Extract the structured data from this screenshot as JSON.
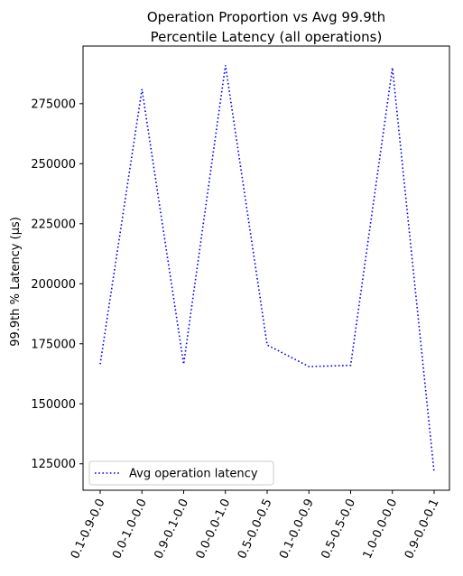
{
  "chart_data": {
    "type": "line",
    "title_line1": "Operation Proportion vs Avg 99.9th",
    "title_line2": "Percentile Latency (all operations)",
    "xlabel": "",
    "ylabel": "99.9th % Latency (µs)",
    "categories": [
      "0.1-0.9-0.0",
      "0.0-1.0-0.0",
      "0.9-0.1-0.0",
      "0.0-0.0-1.0",
      "0.5-0.0-0.5",
      "0.1-0.0-0.9",
      "0.5-0.5-0.0",
      "1.0-0.0-0.0",
      "0.9-0.0-0.1"
    ],
    "series": [
      {
        "name": "Avg operation latency",
        "values": [
          166500,
          281000,
          166500,
          291000,
          174500,
          165500,
          166000,
          290000,
          121500
        ],
        "color": "#0000ff",
        "line_style": "dotted"
      }
    ],
    "yticks": [
      125000,
      150000,
      175000,
      200000,
      225000,
      250000,
      275000
    ],
    "ylim": [
      114000,
      299000
    ],
    "grid": false,
    "legend_position": "lower-left"
  }
}
